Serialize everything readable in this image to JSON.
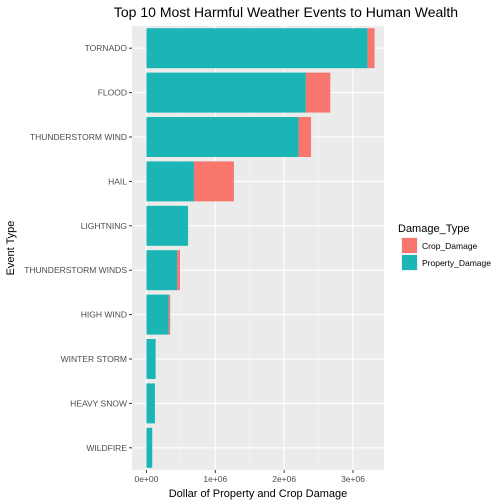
{
  "chart_data": {
    "type": "bar",
    "orientation": "horizontal",
    "stacked": true,
    "title": "Top 10 Most Harmful Weather Events to Human Wealth",
    "xlabel": "Dollar of Property and Crop Damage",
    "ylabel": "Event Type",
    "categories": [
      "TORNADO",
      "FLOOD",
      "THUNDERSTORM WIND",
      "HAIL",
      "LIGHTNING",
      "THUNDERSTORM WINDS",
      "HIGH WIND",
      "WINTER STORM",
      "HEAVY SNOW",
      "WILDFIRE"
    ],
    "series": [
      {
        "name": "Property_Damage",
        "color": "#1bb5b6",
        "values": [
          3212000,
          2315000,
          2210000,
          690000,
          604000,
          447000,
          325000,
          133000,
          123000,
          84000
        ]
      },
      {
        "name": "Crop_Damage",
        "color": "#f8766d",
        "values": [
          100000,
          355000,
          180000,
          580000,
          0,
          40000,
          20000,
          0,
          0,
          0
        ]
      }
    ],
    "xlim": [
      -210000,
      3450000
    ],
    "xticks": [
      0,
      1000000,
      2000000,
      3000000
    ],
    "xtick_labels": [
      "0e+00",
      "1e+06",
      "2e+06",
      "3e+06"
    ],
    "legend": {
      "title": "Damage_Type",
      "position": "right",
      "entries": [
        "Crop_Damage",
        "Property_Damage"
      ]
    },
    "grid": true,
    "panel_background": "#ebebeb"
  }
}
